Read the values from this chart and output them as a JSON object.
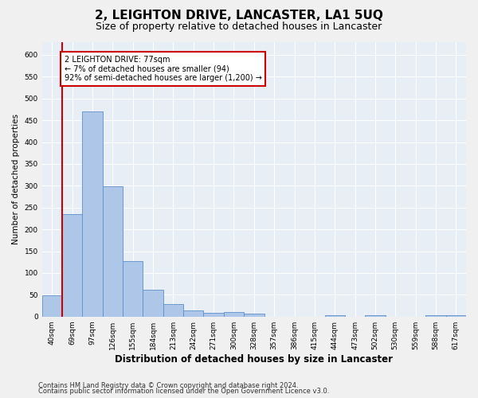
{
  "title": "2, LEIGHTON DRIVE, LANCASTER, LA1 5UQ",
  "subtitle": "Size of property relative to detached houses in Lancaster",
  "xlabel": "Distribution of detached houses by size in Lancaster",
  "ylabel": "Number of detached properties",
  "categories": [
    "40sqm",
    "69sqm",
    "97sqm",
    "126sqm",
    "155sqm",
    "184sqm",
    "213sqm",
    "242sqm",
    "271sqm",
    "300sqm",
    "328sqm",
    "357sqm",
    "386sqm",
    "415sqm",
    "444sqm",
    "473sqm",
    "502sqm",
    "530sqm",
    "559sqm",
    "588sqm",
    "617sqm"
  ],
  "values": [
    48,
    235,
    470,
    298,
    127,
    61,
    28,
    14,
    9,
    10,
    7,
    0,
    0,
    0,
    4,
    0,
    4,
    0,
    0,
    4,
    4
  ],
  "bar_color": "#aec6e8",
  "bar_edge_color": "#5b8fc9",
  "annotation_title": "2 LEIGHTON DRIVE: 77sqm",
  "annotation_line1": "← 7% of detached houses are smaller (94)",
  "annotation_line2": "92% of semi-detached houses are larger (1,200) →",
  "annotation_box_color": "#ffffff",
  "annotation_box_edge": "#cc0000",
  "red_line_color": "#cc0000",
  "ylim": [
    0,
    630
  ],
  "yticks": [
    0,
    50,
    100,
    150,
    200,
    250,
    300,
    350,
    400,
    450,
    500,
    550,
    600
  ],
  "footnote1": "Contains HM Land Registry data © Crown copyright and database right 2024.",
  "footnote2": "Contains public sector information licensed under the Open Government Licence v3.0.",
  "bg_color": "#e8eef5",
  "fig_bg_color": "#f0f0f0",
  "title_fontsize": 11,
  "subtitle_fontsize": 9,
  "xlabel_fontsize": 8.5,
  "ylabel_fontsize": 7.5,
  "tick_fontsize": 6.5,
  "annot_fontsize": 7,
  "footnote_fontsize": 6
}
